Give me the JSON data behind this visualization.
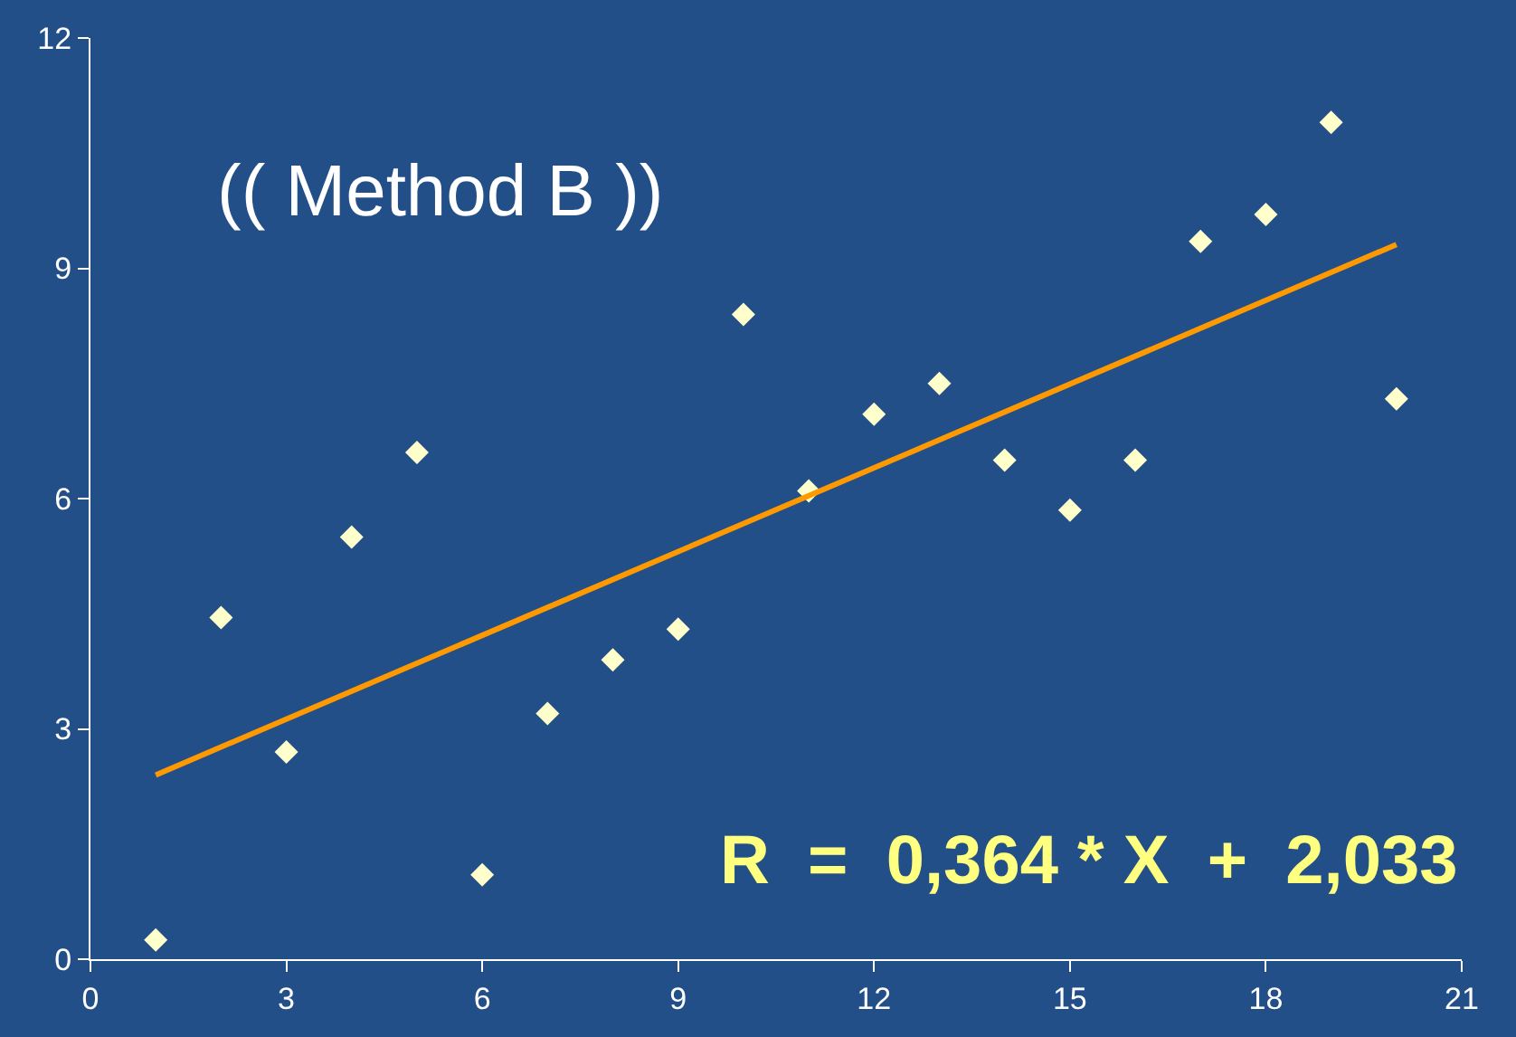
{
  "chart_data": {
    "type": "scatter",
    "grid": false,
    "legend": false,
    "xlim": [
      0,
      21
    ],
    "xticks": [
      0,
      3,
      6,
      9,
      12,
      15,
      18,
      21
    ],
    "ylim": [
      0,
      12
    ],
    "yticks": [
      0,
      3,
      6,
      9,
      12
    ],
    "annotations": [
      "(( Method B ))",
      "R  =  0,364 * X  +  2,033"
    ],
    "series": [
      {
        "marker": "diamond",
        "color": "#ffffcc",
        "x": [
          1,
          2,
          3,
          4,
          5,
          6,
          7,
          8,
          9,
          10,
          11,
          12,
          13,
          14,
          15,
          16,
          17,
          18,
          19,
          20
        ],
        "values": [
          0.25,
          4.45,
          2.7,
          5.5,
          6.6,
          1.1,
          3.2,
          3.9,
          4.3,
          8.4,
          6.1,
          7.1,
          7.5,
          6.5,
          5.85,
          6.5,
          9.35,
          9.7,
          10.9,
          7.3
        ]
      },
      {
        "type": "line",
        "color": "#ff9900",
        "x": [
          1,
          20
        ],
        "values": [
          2.4,
          9.31
        ],
        "marker": "none"
      }
    ]
  }
}
